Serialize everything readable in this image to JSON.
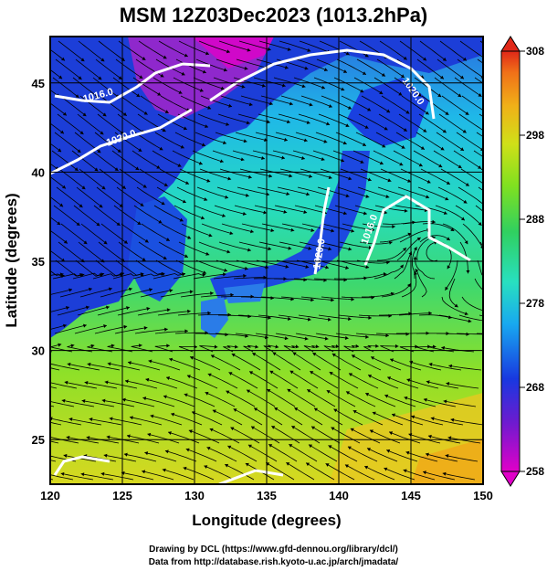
{
  "title": "MSM 12Z03Dec2023 (1013.2hPa)",
  "axes": {
    "xlabel": "Longitude (degrees)",
    "ylabel": "Latitude  (degrees)",
    "xticks": [
      "120",
      "125",
      "130",
      "135",
      "140",
      "145",
      "150"
    ],
    "yticks": [
      "25",
      "30",
      "35",
      "40",
      "45"
    ],
    "xlim": [
      120,
      150
    ],
    "ylim": [
      22.5,
      47.6
    ]
  },
  "colorbar": {
    "ticks": [
      "258",
      "268",
      "278",
      "288",
      "298",
      "308"
    ],
    "range": [
      258,
      308
    ],
    "colors": [
      "#e000c8",
      "#5a1fd0",
      "#1838e0",
      "#1aa8f0",
      "#28e0b0",
      "#30d060",
      "#7fe020",
      "#d0e018",
      "#f0c018",
      "#f08018",
      "#e02818"
    ]
  },
  "contours": [
    "1016.0",
    "1020.0",
    "1020.0",
    "1020.0",
    "1016.0"
  ],
  "credits": {
    "line1": "Drawing by DCL (https://www.gfd-dennou.org/library/dcl/)",
    "line2": "Data from http://database.rish.kyoto-u.ac.jp/arch/jmadata/"
  },
  "colors": {
    "land_cold": "#1a3ad8",
    "ocean_mid": "#20d8c8",
    "ocean_warm": "#70e040",
    "contour": "#ffffff",
    "streamline": "#000000"
  }
}
